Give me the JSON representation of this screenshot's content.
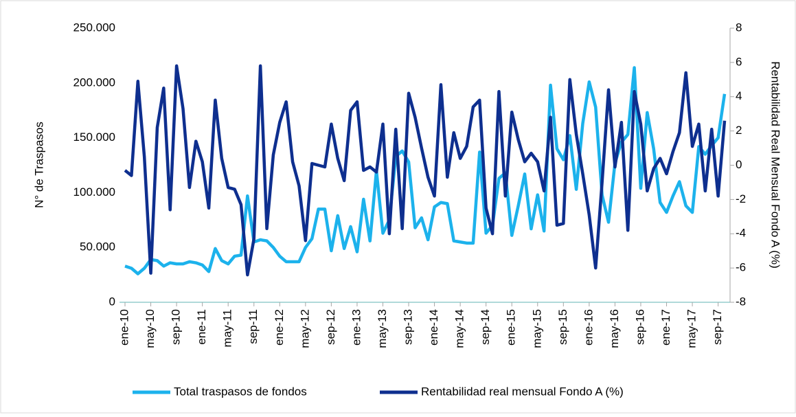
{
  "chart_data": {
    "type": "line",
    "y_label": "N° de Traspasos",
    "y2_label": "Rentabilidad Real Mensual Fondo A (%)",
    "categories": [
      "ene-10",
      null,
      null,
      null,
      "may-10",
      null,
      null,
      null,
      "sep-10",
      null,
      null,
      null,
      "ene-11",
      null,
      null,
      null,
      "may-11",
      null,
      null,
      null,
      "sep-11",
      null,
      null,
      null,
      "ene-12",
      null,
      null,
      null,
      "may-12",
      null,
      null,
      null,
      "sep-12",
      null,
      null,
      null,
      "ene-13",
      null,
      null,
      null,
      "may-13",
      null,
      null,
      null,
      "sep-13",
      null,
      null,
      null,
      "ene-14",
      null,
      null,
      null,
      "may-14",
      null,
      null,
      null,
      "sep-14",
      null,
      null,
      null,
      "ene-15",
      null,
      null,
      null,
      "may-15",
      null,
      null,
      null,
      "sep-15",
      null,
      null,
      null,
      "ene-16",
      null,
      null,
      null,
      "may-16",
      null,
      null,
      null,
      "sep-16",
      null,
      null,
      null,
      "ene-17",
      null,
      null,
      null,
      "may-17",
      null,
      null,
      null,
      "sep-17",
      null
    ],
    "series": [
      {
        "name": "Total traspasos de fondos",
        "color": "#1cb2ec",
        "axis": "y",
        "values": [
          33000,
          31000,
          26000,
          31000,
          39000,
          38000,
          33000,
          36000,
          35000,
          35000,
          37000,
          36000,
          34000,
          28000,
          49000,
          38000,
          35000,
          42000,
          43000,
          97000,
          55000,
          57000,
          56000,
          50000,
          42000,
          37000,
          37000,
          37000,
          50000,
          58000,
          85000,
          85000,
          47000,
          79000,
          49000,
          69000,
          46000,
          94000,
          56000,
          120000,
          63000,
          75000,
          133000,
          138000,
          128000,
          68000,
          77000,
          57000,
          87000,
          91000,
          90000,
          56000,
          55000,
          54000,
          54000,
          137000,
          63000,
          70000,
          113000,
          118000,
          61000,
          88000,
          117000,
          67000,
          98000,
          65000,
          198000,
          140000,
          130000,
          152000,
          103000,
          163000,
          201000,
          178000,
          98000,
          73000,
          127000,
          146000,
          153000,
          214000,
          104000,
          173000,
          140000,
          91000,
          82000,
          97000,
          110000,
          88000,
          82000,
          142000,
          135000,
          143000,
          150000,
          190000
        ]
      },
      {
        "name": "Rentabilidad real mensual Fondo A (%)",
        "color": "#0e2f8f",
        "axis": "y2",
        "values": [
          -0.3,
          -0.6,
          4.9,
          0.5,
          -6.3,
          2.2,
          4.5,
          -2.6,
          5.8,
          3.3,
          -1.3,
          1.4,
          0.2,
          -2.5,
          3.8,
          0.4,
          -1.3,
          -1.4,
          -2.3,
          -6.4,
          -4.3,
          5.8,
          -3.7,
          0.6,
          2.5,
          3.7,
          0.2,
          -1.2,
          -4.4,
          0.1,
          0.0,
          -0.1,
          2.4,
          0.4,
          -0.9,
          3.2,
          3.7,
          -0.3,
          -0.1,
          -0.4,
          2.4,
          -4.0,
          2.1,
          -3.7,
          4.2,
          2.8,
          1.0,
          -0.7,
          -1.8,
          4.7,
          -0.7,
          1.9,
          0.4,
          1.1,
          3.4,
          3.8,
          -2.5,
          -4.0,
          4.3,
          -1.8,
          3.1,
          1.5,
          0.2,
          0.7,
          0.2,
          -1.5,
          2.8,
          -3.5,
          -3.4,
          5.0,
          1.8,
          -0.5,
          -2.9,
          -6.0,
          -1.0,
          4.4,
          -0.1,
          2.5,
          -3.8,
          4.3,
          2.4,
          -1.5,
          -0.2,
          0.4,
          -0.5,
          0.8,
          1.9,
          5.4,
          1.1,
          2.4,
          -1.5,
          2.1,
          -1.8,
          2.6
        ]
      }
    ],
    "ylim": [
      0,
      250000
    ],
    "yticks": [
      0,
      {
        "value": 50000,
        "label": "50.000"
      },
      {
        "value": 100000,
        "label": "100.000"
      },
      {
        "value": 150000,
        "label": "150.000"
      },
      {
        "value": 200000,
        "label": "200.000"
      },
      {
        "value": 250000,
        "label": "250.000"
      }
    ],
    "y2lim": [
      -8,
      8
    ],
    "y2ticks": [
      -8,
      -6,
      -4,
      -2,
      0,
      2,
      4,
      6,
      8
    ],
    "grid": false,
    "legend": "bottom"
  }
}
